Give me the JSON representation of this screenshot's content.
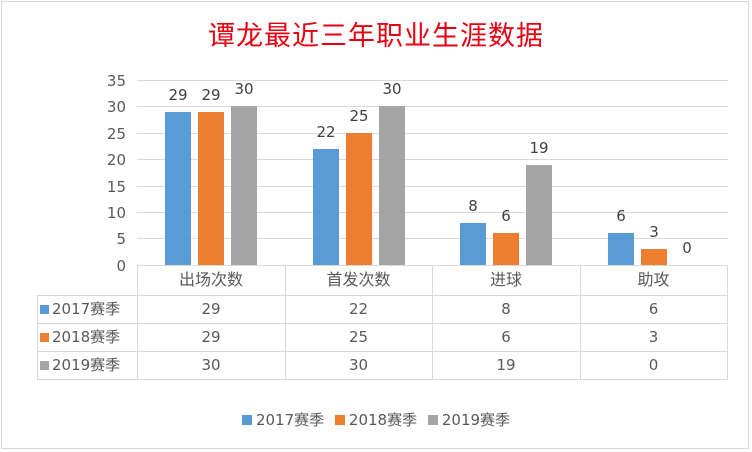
{
  "chart_data": {
    "type": "bar",
    "title": "谭龙最近三年职业生涯数据",
    "categories": [
      "出场次数",
      "首发次数",
      "进球",
      "助攻"
    ],
    "series": [
      {
        "name": "2017赛季",
        "color": "#5b9bd5",
        "values": [
          29,
          22,
          8,
          6
        ]
      },
      {
        "name": "2018赛季",
        "color": "#ed7d31",
        "values": [
          29,
          25,
          6,
          3
        ]
      },
      {
        "name": "2019赛季",
        "color": "#a5a5a5",
        "values": [
          30,
          30,
          19,
          0
        ]
      }
    ],
    "xlabel": "",
    "ylabel": "",
    "ylim": [
      0,
      35
    ],
    "yticks": [
      0,
      5,
      10,
      15,
      20,
      25,
      30,
      35
    ],
    "grid": true,
    "data_labels": true,
    "data_table": true,
    "legend_position": "bottom"
  },
  "title": "谭龙最近三年职业生涯数据",
  "yticks": [
    "35",
    "30",
    "25",
    "20",
    "15",
    "10",
    "5",
    "0"
  ],
  "categories": [
    "出场次数",
    "首发次数",
    "进球",
    "助攻"
  ],
  "series": [
    {
      "name": "2017赛季",
      "values": [
        "29",
        "22",
        "8",
        "6"
      ]
    },
    {
      "name": "2018赛季",
      "values": [
        "29",
        "25",
        "6",
        "3"
      ]
    },
    {
      "name": "2019赛季",
      "values": [
        "30",
        "30",
        "19",
        "0"
      ]
    }
  ],
  "legend": [
    "2017赛季",
    "2018赛季",
    "2019赛季"
  ]
}
